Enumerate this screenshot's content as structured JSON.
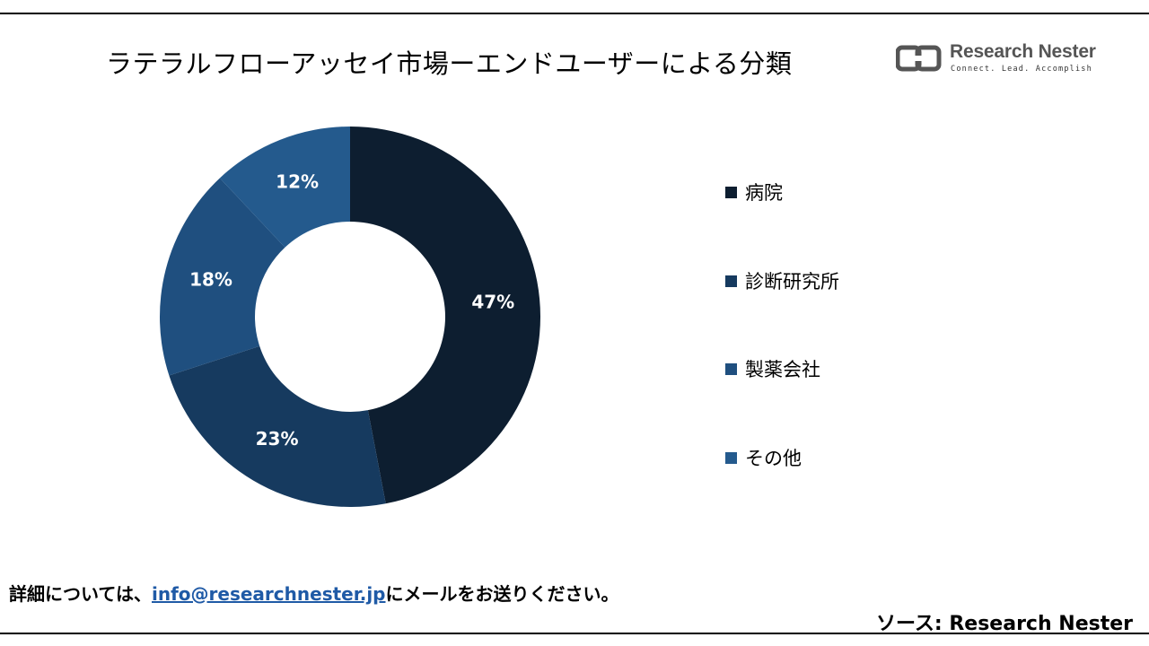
{
  "title": "ラテラルフローアッセイ市場ーエンドユーザーによる分類",
  "logo": {
    "name": "Research Nester",
    "tagline": "Connect. Lead. Accomplish",
    "icon": "research-nester-logo-icon"
  },
  "chart_data": {
    "type": "pie",
    "donut": true,
    "title": "ラテラルフローアッセイ市場ーエンドユーザーによる分類",
    "legend_position": "right",
    "categories": [
      "病院",
      "診断研究所",
      "製薬会社",
      "その他"
    ],
    "values": [
      47,
      23,
      18,
      12
    ],
    "data_labels": [
      "47%",
      "23%",
      "18%",
      "12%"
    ],
    "colors": [
      "#0d1e30",
      "#163a5f",
      "#1f4f7f",
      "#245a8d"
    ]
  },
  "footer": {
    "prefix": "詳細については、",
    "email": "info@researchnester.jp",
    "suffix": "にメールをお送りください。"
  },
  "source": "ソース: Research Nester"
}
